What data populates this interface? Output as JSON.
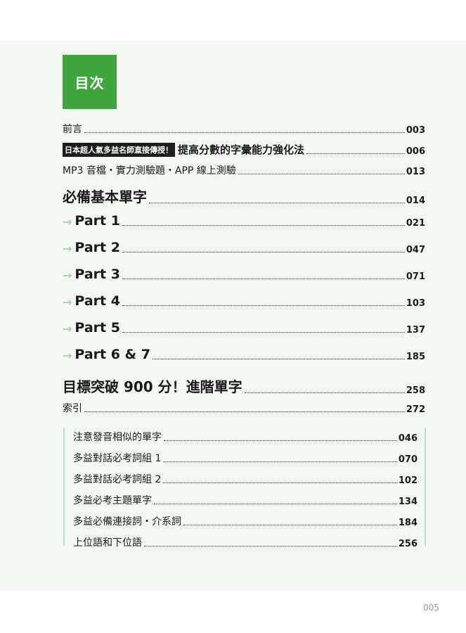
{
  "title": "目次",
  "entries": [
    {
      "label": "前言",
      "page": "003"
    },
    {
      "badge": "日本超人氣多益名師直接傳授！",
      "label": "提高分數的字彙能力強化法",
      "page": "006"
    },
    {
      "label": "MP3 音檔・實力測驗題・APP 線上測驗",
      "page": "013"
    },
    {
      "label": "必備基本單字",
      "page": "014"
    }
  ],
  "parts": [
    {
      "label": "Part 1",
      "page": "021"
    },
    {
      "label": "Part 2",
      "page": "047"
    },
    {
      "label": "Part 3",
      "page": "071"
    },
    {
      "label": "Part 4",
      "page": "103"
    },
    {
      "label": "Part 5",
      "page": "137"
    },
    {
      "label": "Part 6 & 7",
      "page": "185"
    }
  ],
  "chapters": [
    {
      "label": "目標突破 900 分！進階單字",
      "page": "258"
    },
    {
      "label": "索引",
      "page": "272"
    }
  ],
  "columns": [
    {
      "label": "注意發音相似的單字",
      "page": "046"
    },
    {
      "label": "多益對話必考詞組 1",
      "page": "070"
    },
    {
      "label": "多益對話必考詞組 2",
      "page": "102"
    },
    {
      "label": "多益必考主題單字",
      "page": "134"
    },
    {
      "label": "多益必備連接詞・介系詞",
      "page": "184"
    },
    {
      "label": "上位語和下位語",
      "page": "256"
    }
  ],
  "arrow_icon": "arrow-right-icon",
  "accent_color": "#3fa53f",
  "page_number": "005"
}
